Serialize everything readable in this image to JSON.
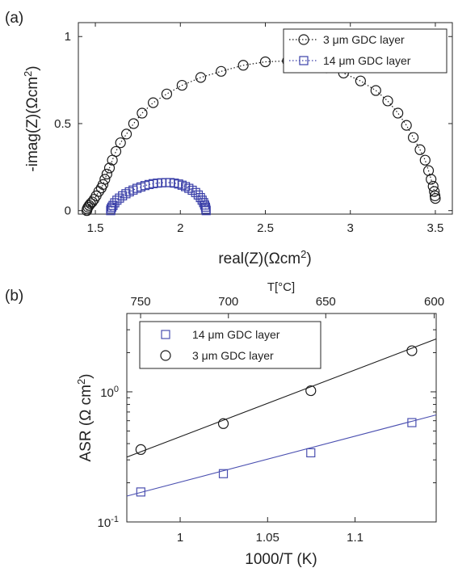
{
  "chart_data": [
    {
      "panel_label": "(a)",
      "type": "scatter",
      "xlabel": "real(Z)(Ωcm²)",
      "ylabel": "-imag(Z)(Ωcm²)",
      "xlim": [
        1.4,
        3.6
      ],
      "ylim": [
        -0.02,
        1.08
      ],
      "xticks": [
        "1.5",
        "2",
        "2.5",
        "3",
        "3.5"
      ],
      "yticks": [
        "0",
        "0.5",
        "1"
      ],
      "legend_position": "top-right",
      "series": [
        {
          "name": "3 μm GDC layer",
          "marker": "circle",
          "line": "dotted",
          "color": "#1a1a1a",
          "points": [
            [
              1.45,
              0.0
            ],
            [
              1.452,
              0.01
            ],
            [
              1.457,
              0.02
            ],
            [
              1.464,
              0.03
            ],
            [
              1.472,
              0.04
            ],
            [
              1.482,
              0.05
            ],
            [
              1.493,
              0.065
            ],
            [
              1.505,
              0.085
            ],
            [
              1.52,
              0.11
            ],
            [
              1.535,
              0.13
            ],
            [
              1.545,
              0.15
            ],
            [
              1.556,
              0.18
            ],
            [
              1.568,
              0.21
            ],
            [
              1.583,
              0.245
            ],
            [
              1.6,
              0.29
            ],
            [
              1.621,
              0.34
            ],
            [
              1.648,
              0.39
            ],
            [
              1.683,
              0.44
            ],
            [
              1.725,
              0.5
            ],
            [
              1.775,
              0.56
            ],
            [
              1.84,
              0.62
            ],
            [
              1.92,
              0.67
            ],
            [
              2.01,
              0.72
            ],
            [
              2.12,
              0.765
            ],
            [
              2.24,
              0.8
            ],
            [
              2.37,
              0.835
            ],
            [
              2.5,
              0.855
            ],
            [
              2.63,
              0.86
            ],
            [
              2.75,
              0.845
            ],
            [
              2.86,
              0.82
            ],
            [
              2.96,
              0.79
            ],
            [
              3.06,
              0.745
            ],
            [
              3.15,
              0.69
            ],
            [
              3.22,
              0.63
            ],
            [
              3.28,
              0.56
            ],
            [
              3.33,
              0.49
            ],
            [
              3.37,
              0.42
            ],
            [
              3.41,
              0.35
            ],
            [
              3.44,
              0.29
            ],
            [
              3.46,
              0.23
            ],
            [
              3.475,
              0.18
            ],
            [
              3.487,
              0.14
            ],
            [
              3.494,
              0.11
            ],
            [
              3.498,
              0.085
            ],
            [
              3.5,
              0.07
            ]
          ]
        },
        {
          "name": "14 μm GDC layer",
          "marker": "square",
          "line": "dotted",
          "color": "#3a3fa8",
          "points": [
            [
              1.59,
              0.0
            ],
            [
              1.592,
              0.01
            ],
            [
              1.597,
              0.02
            ],
            [
              1.604,
              0.03
            ],
            [
              1.614,
              0.045
            ],
            [
              1.627,
              0.06
            ],
            [
              1.642,
              0.072
            ],
            [
              1.66,
              0.085
            ],
            [
              1.68,
              0.097
            ],
            [
              1.7,
              0.108
            ],
            [
              1.722,
              0.118
            ],
            [
              1.745,
              0.128
            ],
            [
              1.768,
              0.136
            ],
            [
              1.792,
              0.144
            ],
            [
              1.816,
              0.15
            ],
            [
              1.84,
              0.155
            ],
            [
              1.865,
              0.158
            ],
            [
              1.89,
              0.16
            ],
            [
              1.915,
              0.161
            ],
            [
              1.94,
              0.161
            ],
            [
              1.965,
              0.158
            ],
            [
              1.99,
              0.153
            ],
            [
              2.01,
              0.146
            ],
            [
              2.03,
              0.138
            ],
            [
              2.05,
              0.128
            ],
            [
              2.07,
              0.117
            ],
            [
              2.09,
              0.104
            ],
            [
              2.105,
              0.09
            ],
            [
              2.118,
              0.075
            ],
            [
              2.128,
              0.06
            ],
            [
              2.137,
              0.046
            ],
            [
              2.143,
              0.032
            ],
            [
              2.148,
              0.02
            ],
            [
              2.15,
              0.008
            ],
            [
              2.152,
              0.0
            ]
          ]
        }
      ]
    },
    {
      "panel_label": "(b)",
      "type": "scatter",
      "xlabel": "1000/T (K)",
      "ylabel": "ASR (Ω cm²)",
      "x2label": "T[°C]",
      "yscale": "log",
      "xlim": [
        0.9695,
        1.1464
      ],
      "ylim": [
        0.1,
        4.0
      ],
      "xticks": [
        "1",
        "1.05",
        "1.1"
      ],
      "x2ticks": [
        "750",
        "700",
        "650",
        "600"
      ],
      "x2_tick_values_celsius": [
        750,
        700,
        650,
        600
      ],
      "yticks": [
        {
          "base": "10",
          "exp": "0"
        },
        {
          "base": "10",
          "exp": "-1"
        }
      ],
      "legend_position": "top-left",
      "series": [
        {
          "name": "14 μm GDC layer",
          "marker": "square",
          "color": "#4a4fb0",
          "x": [
            0.9775,
            1.0247,
            1.0747,
            1.1325
          ],
          "y": [
            0.17,
            0.235,
            0.34,
            0.58
          ],
          "fit_x": [
            0.9695,
            1.1464
          ],
          "fit_y": [
            0.158,
            0.665
          ]
        },
        {
          "name": "3 μm GDC layer",
          "marker": "circle",
          "color": "#1a1a1a",
          "x": [
            0.9775,
            1.0247,
            1.0747,
            1.1325
          ],
          "y": [
            0.36,
            0.57,
            1.02,
            2.07
          ],
          "fit_x": [
            0.9695,
            1.1464
          ],
          "fit_y": [
            0.315,
            2.55
          ]
        }
      ]
    }
  ]
}
